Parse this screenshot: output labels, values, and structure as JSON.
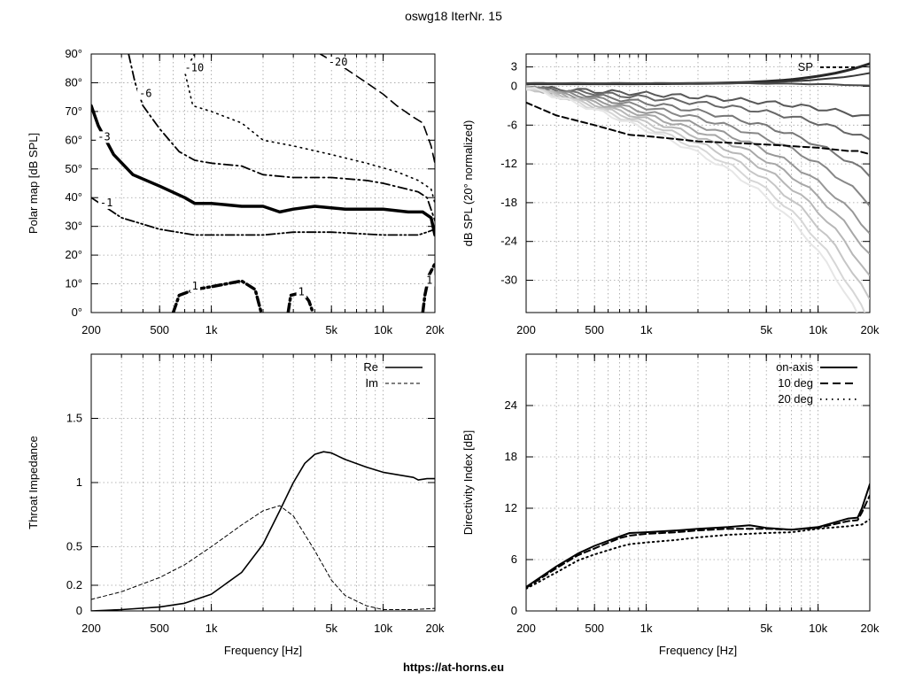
{
  "title": "oswg18 IterNr. 15",
  "footer": "https://at-horns.eu",
  "chart_data": [
    {
      "id": "polar",
      "type": "line",
      "subtype": "contour",
      "ylabel": "Polar map [dB SPL]",
      "xlabel": "",
      "xscale": "log",
      "xlim": [
        200,
        20000
      ],
      "ylim": [
        0,
        90
      ],
      "xticks": [
        {
          "v": 200,
          "l": "200"
        },
        {
          "v": 500,
          "l": "500"
        },
        {
          "v": 1000,
          "l": "1k"
        },
        {
          "v": 5000,
          "l": "5k"
        },
        {
          "v": 10000,
          "l": "10k"
        },
        {
          "v": 20000,
          "l": "20k"
        }
      ],
      "yticks": [
        {
          "v": 0,
          "l": "0°"
        },
        {
          "v": 10,
          "l": "10°"
        },
        {
          "v": 20,
          "l": "20°"
        },
        {
          "v": 30,
          "l": "30°"
        },
        {
          "v": 40,
          "l": "40°"
        },
        {
          "v": 50,
          "l": "50°"
        },
        {
          "v": 60,
          "l": "60°"
        },
        {
          "v": 70,
          "l": "70°"
        },
        {
          "v": 80,
          "l": "80°"
        },
        {
          "v": 90,
          "l": "90°"
        }
      ],
      "grid": true,
      "series": [
        {
          "name": "-20",
          "points": [
            [
              4300,
              90
            ],
            [
              6000,
              85
            ],
            [
              8000,
              80
            ],
            [
              10000,
              76
            ],
            [
              12000,
              72
            ],
            [
              15000,
              68
            ],
            [
              17000,
              66
            ],
            [
              19000,
              58
            ],
            [
              20000,
              52
            ]
          ]
        },
        {
          "name": "-10",
          "points": [
            [
              800,
              90
            ],
            [
              700,
              84
            ],
            [
              780,
              72
            ],
            [
              1000,
              70
            ],
            [
              1500,
              66
            ],
            [
              2000,
              60
            ],
            [
              3000,
              58
            ],
            [
              5000,
              55
            ],
            [
              8000,
              52
            ],
            [
              12000,
              49
            ],
            [
              16000,
              46
            ],
            [
              19000,
              43
            ],
            [
              20000,
              38
            ]
          ]
        },
        {
          "name": "-6",
          "points": [
            [
              330,
              90
            ],
            [
              360,
              80
            ],
            [
              400,
              72
            ],
            [
              500,
              64
            ],
            [
              650,
              56
            ],
            [
              800,
              53
            ],
            [
              1000,
              52
            ],
            [
              1500,
              51
            ],
            [
              2000,
              48
            ],
            [
              3000,
              47
            ],
            [
              5000,
              47
            ],
            [
              8000,
              46
            ],
            [
              10000,
              45
            ],
            [
              16000,
              42
            ],
            [
              18000,
              40
            ],
            [
              20000,
              32
            ]
          ]
        },
        {
          "name": "-3",
          "points": [
            [
              200,
              72
            ],
            [
              220,
              65
            ],
            [
              270,
              55
            ],
            [
              350,
              48
            ],
            [
              500,
              44
            ],
            [
              700,
              40
            ],
            [
              800,
              38
            ],
            [
              1000,
              38
            ],
            [
              1500,
              37
            ],
            [
              2000,
              37
            ],
            [
              2500,
              35
            ],
            [
              3000,
              36
            ],
            [
              4000,
              37
            ],
            [
              6000,
              36
            ],
            [
              10000,
              36
            ],
            [
              14000,
              35
            ],
            [
              17000,
              35
            ],
            [
              19000,
              33
            ],
            [
              20000,
              27
            ]
          ]
        },
        {
          "name": "-1",
          "points": [
            [
              200,
              40
            ],
            [
              300,
              33
            ],
            [
              500,
              29
            ],
            [
              800,
              27
            ],
            [
              1000,
              27
            ],
            [
              2000,
              27
            ],
            [
              3000,
              28
            ],
            [
              5000,
              28
            ],
            [
              10000,
              27
            ],
            [
              16000,
              27
            ],
            [
              18000,
              28
            ],
            [
              20000,
              29
            ]
          ]
        },
        {
          "name": "1",
          "points": [
            [
              600,
              0
            ],
            [
              650,
              6
            ],
            [
              800,
              8
            ],
            [
              1000,
              9
            ],
            [
              1500,
              11
            ],
            [
              1800,
              8
            ],
            [
              1950,
              0
            ]
          ]
        },
        {
          "name": "1",
          "points": [
            [
              2800,
              0
            ],
            [
              2900,
              6
            ],
            [
              3400,
              7
            ],
            [
              3700,
              4
            ],
            [
              3900,
              0
            ]
          ]
        },
        {
          "name": "1",
          "points": [
            [
              17000,
              0
            ],
            [
              17500,
              6
            ],
            [
              18500,
              13
            ],
            [
              20000,
              17
            ]
          ]
        }
      ],
      "annotations": [
        {
          "text": "-20",
          "x": 4800,
          "y": 86
        },
        {
          "text": "-10",
          "x": 700,
          "y": 84
        },
        {
          "text": "-6",
          "x": 380,
          "y": 75
        },
        {
          "text": "-3",
          "x": 218,
          "y": 60
        },
        {
          "text": "-1",
          "x": 225,
          "y": 37
        },
        {
          "text": "1",
          "x": 770,
          "y": 8
        },
        {
          "text": "1",
          "x": 3200,
          "y": 6
        },
        {
          "text": "1",
          "x": 17800,
          "y": 10
        }
      ]
    },
    {
      "id": "normalized",
      "type": "line",
      "ylabel": "dB SPL (20° normalized)",
      "xlabel": "",
      "xscale": "log",
      "xlim": [
        200,
        20000
      ],
      "ylim": [
        -35,
        5
      ],
      "xticks": [
        {
          "v": 200,
          "l": "200"
        },
        {
          "v": 500,
          "l": "500"
        },
        {
          "v": 1000,
          "l": "1k"
        },
        {
          "v": 5000,
          "l": "5k"
        },
        {
          "v": 10000,
          "l": "10k"
        },
        {
          "v": 20000,
          "l": "20k"
        }
      ],
      "yticks": [
        {
          "v": 3,
          "l": "3"
        },
        {
          "v": 0,
          "l": "0"
        },
        {
          "v": -6,
          "l": "-6"
        },
        {
          "v": -12,
          "l": "-12"
        },
        {
          "v": -18,
          "l": "-18"
        },
        {
          "v": -24,
          "l": "-24"
        },
        {
          "v": -30,
          "l": "-30"
        }
      ],
      "grid": true,
      "legend": "top-right",
      "series": [
        {
          "name": "SP",
          "style": "dashed",
          "points": [
            [
              200,
              -2.5
            ],
            [
              300,
              -4.5
            ],
            [
              500,
              -6
            ],
            [
              800,
              -7.5
            ],
            [
              1000,
              -7.7
            ],
            [
              2000,
              -8.5
            ],
            [
              5000,
              -9
            ],
            [
              10000,
              -9.5
            ],
            [
              15000,
              -10
            ],
            [
              17000,
              -10
            ],
            [
              20000,
              -10.5
            ]
          ]
        }
      ],
      "fan": {
        "end_db_at_20k": [
          3.5,
          2,
          0,
          -3,
          -6,
          -11,
          -15,
          -19,
          -22,
          -25,
          -28,
          -31,
          -33
        ]
      }
    },
    {
      "id": "impedance",
      "type": "line",
      "ylabel": "Throat Impedance",
      "xlabel": "Frequency [Hz]",
      "xscale": "log",
      "xlim": [
        200,
        20000
      ],
      "ylim": [
        0,
        2
      ],
      "xticks": [
        {
          "v": 200,
          "l": "200"
        },
        {
          "v": 500,
          "l": "500"
        },
        {
          "v": 1000,
          "l": "1k"
        },
        {
          "v": 5000,
          "l": "5k"
        },
        {
          "v": 10000,
          "l": "10k"
        },
        {
          "v": 20000,
          "l": "20k"
        }
      ],
      "yticks": [
        {
          "v": 0,
          "l": "0"
        },
        {
          "v": 0.2,
          "l": "0.2"
        },
        {
          "v": 0.5,
          "l": "0.5"
        },
        {
          "v": 1,
          "l": "1"
        },
        {
          "v": 1.5,
          "l": "1.5"
        }
      ],
      "grid": true,
      "legend": "top-right",
      "series": [
        {
          "name": "Re",
          "style": "solid",
          "points": [
            [
              200,
              0
            ],
            [
              300,
              0.01
            ],
            [
              500,
              0.03
            ],
            [
              700,
              0.06
            ],
            [
              1000,
              0.13
            ],
            [
              1500,
              0.3
            ],
            [
              2000,
              0.52
            ],
            [
              2500,
              0.78
            ],
            [
              3000,
              1
            ],
            [
              3500,
              1.15
            ],
            [
              4000,
              1.22
            ],
            [
              4500,
              1.24
            ],
            [
              5000,
              1.23
            ],
            [
              6000,
              1.18
            ],
            [
              8000,
              1.12
            ],
            [
              10000,
              1.08
            ],
            [
              15000,
              1.04
            ],
            [
              16000,
              1.02
            ],
            [
              18000,
              1.03
            ],
            [
              20000,
              1.03
            ]
          ]
        },
        {
          "name": "Im",
          "style": "dashed",
          "points": [
            [
              200,
              0.09
            ],
            [
              300,
              0.15
            ],
            [
              500,
              0.26
            ],
            [
              700,
              0.36
            ],
            [
              1000,
              0.5
            ],
            [
              1500,
              0.67
            ],
            [
              2000,
              0.78
            ],
            [
              2500,
              0.82
            ],
            [
              3000,
              0.74
            ],
            [
              4000,
              0.47
            ],
            [
              5000,
              0.24
            ],
            [
              6000,
              0.12
            ],
            [
              8000,
              0.04
            ],
            [
              10000,
              0.01
            ],
            [
              15000,
              0.01
            ],
            [
              20000,
              0.02
            ]
          ]
        }
      ]
    },
    {
      "id": "di",
      "type": "line",
      "ylabel": "Directivity Index [dB]",
      "xlabel": "Frequency [Hz]",
      "xscale": "log",
      "xlim": [
        200,
        20000
      ],
      "ylim": [
        0,
        30
      ],
      "xticks": [
        {
          "v": 200,
          "l": "200"
        },
        {
          "v": 500,
          "l": "500"
        },
        {
          "v": 1000,
          "l": "1k"
        },
        {
          "v": 5000,
          "l": "5k"
        },
        {
          "v": 10000,
          "l": "10k"
        },
        {
          "v": 20000,
          "l": "20k"
        }
      ],
      "yticks": [
        {
          "v": 0,
          "l": "0"
        },
        {
          "v": 6,
          "l": "6"
        },
        {
          "v": 12,
          "l": "12"
        },
        {
          "v": 18,
          "l": "18"
        },
        {
          "v": 24,
          "l": "24"
        }
      ],
      "grid": true,
      "legend": "top-right",
      "series": [
        {
          "name": "on-axis",
          "style": "solid",
          "points": [
            [
              200,
              2.8
            ],
            [
              300,
              5.2
            ],
            [
              400,
              6.7
            ],
            [
              500,
              7.6
            ],
            [
              700,
              8.7
            ],
            [
              800,
              9.1
            ],
            [
              1000,
              9.2
            ],
            [
              1500,
              9.4
            ],
            [
              2000,
              9.6
            ],
            [
              3000,
              9.8
            ],
            [
              4000,
              10
            ],
            [
              5000,
              9.7
            ],
            [
              7000,
              9.5
            ],
            [
              10000,
              9.8
            ],
            [
              15000,
              10.8
            ],
            [
              17000,
              10.9
            ],
            [
              18000,
              12
            ],
            [
              20000,
              14.8
            ]
          ]
        },
        {
          "name": "10 deg",
          "style": "dashed",
          "points": [
            [
              200,
              2.7
            ],
            [
              300,
              5
            ],
            [
              400,
              6.5
            ],
            [
              500,
              7.3
            ],
            [
              700,
              8.5
            ],
            [
              800,
              8.8
            ],
            [
              1000,
              9
            ],
            [
              1500,
              9.2
            ],
            [
              2000,
              9.4
            ],
            [
              3000,
              9.6
            ],
            [
              5000,
              9.6
            ],
            [
              7000,
              9.5
            ],
            [
              10000,
              9.7
            ],
            [
              15000,
              10.5
            ],
            [
              17000,
              10.6
            ],
            [
              18000,
              11.5
            ],
            [
              20000,
              13.5
            ]
          ]
        },
        {
          "name": "20 deg",
          "style": "dotted",
          "points": [
            [
              200,
              2.6
            ],
            [
              300,
              4.5
            ],
            [
              400,
              5.9
            ],
            [
              500,
              6.6
            ],
            [
              700,
              7.5
            ],
            [
              800,
              7.8
            ],
            [
              1000,
              8
            ],
            [
              1500,
              8.3
            ],
            [
              2000,
              8.6
            ],
            [
              3000,
              8.9
            ],
            [
              5000,
              9.1
            ],
            [
              7000,
              9.2
            ],
            [
              10000,
              9.6
            ],
            [
              15000,
              9.9
            ],
            [
              18000,
              10.1
            ],
            [
              20000,
              10.7
            ]
          ]
        }
      ]
    }
  ]
}
